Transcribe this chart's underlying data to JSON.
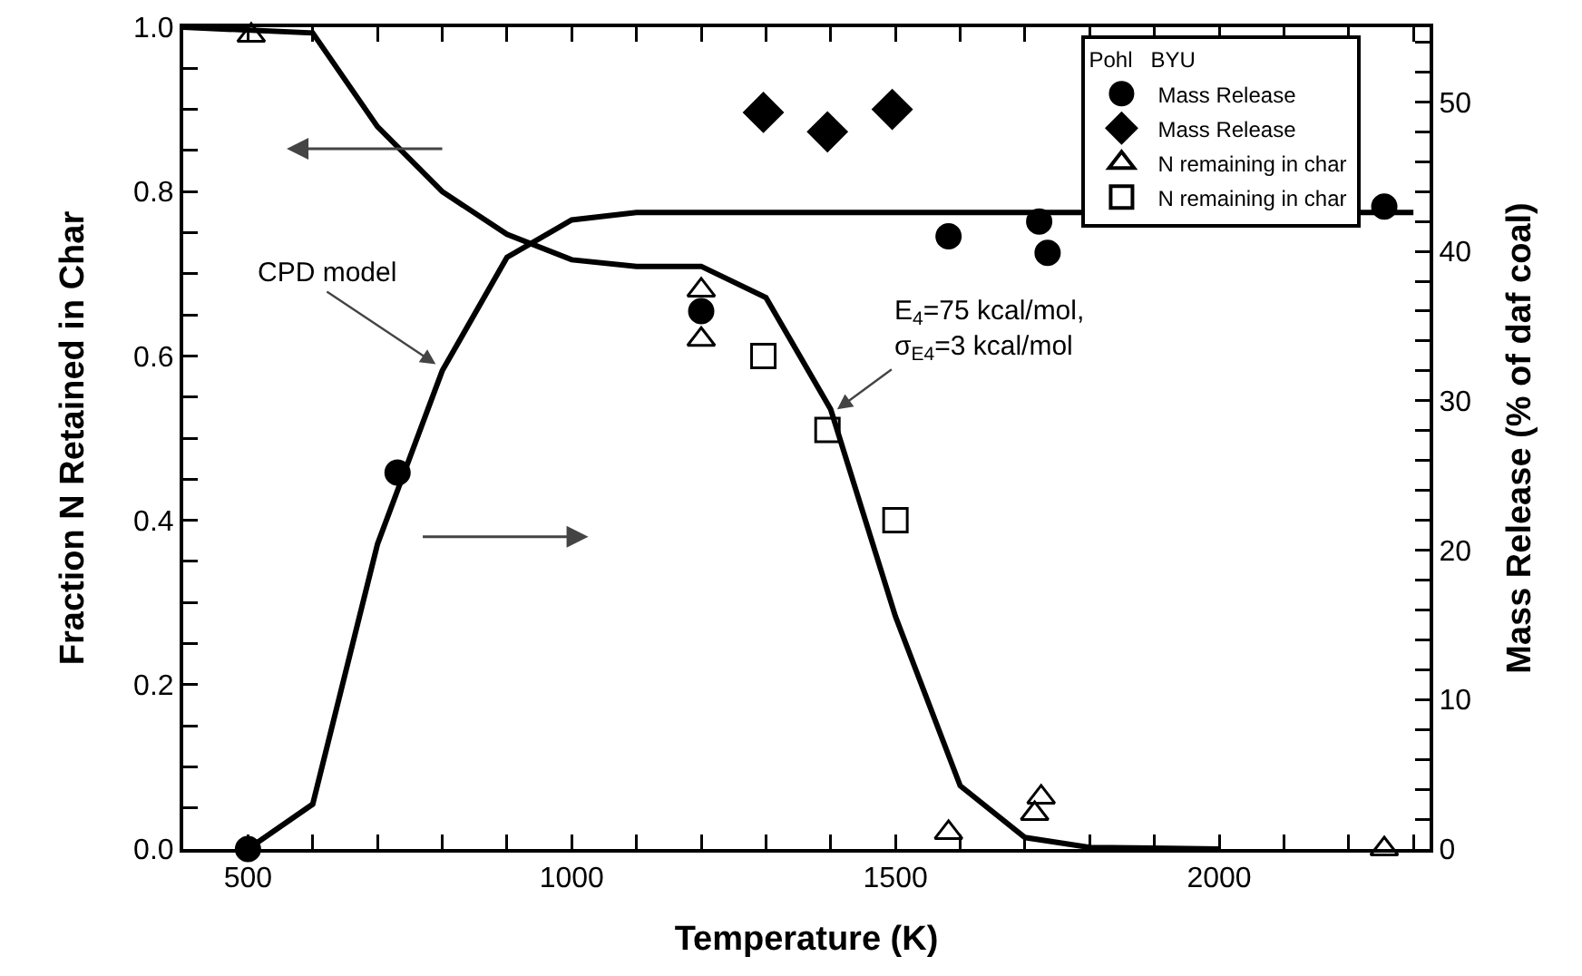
{
  "chart_data": {
    "type": "line",
    "xlabel": "Temperature (K)",
    "ylabel": "Fraction N Retained in Char",
    "y2label": "Mass Release (% of daf coal)",
    "legend_title": "Pohl   BYU",
    "xlim": [
      400,
      2325
    ],
    "xticks": [
      {
        "value": 400,
        "label": null
      },
      500,
      {
        "value": 600,
        "label": null
      },
      {
        "value": 700,
        "label": null
      },
      {
        "value": 800,
        "label": null
      },
      {
        "value": 900,
        "label": null
      },
      1000,
      {
        "value": 1100,
        "label": null
      },
      {
        "value": 1200,
        "label": null
      },
      {
        "value": 1300,
        "label": null
      },
      {
        "value": 1400,
        "label": null
      },
      1500,
      {
        "value": 1600,
        "label": null
      },
      {
        "value": 1700,
        "label": null
      },
      {
        "value": 1800,
        "label": null
      },
      {
        "value": 1900,
        "label": null
      },
      2000,
      {
        "value": 2100,
        "label": null
      },
      {
        "value": 2200,
        "label": null
      },
      {
        "value": 2300,
        "label": null
      }
    ],
    "ylim": [
      0,
      1
    ],
    "yticks": [
      {
        "value": 0,
        "label": "0.0"
      },
      {
        "value": 0.05,
        "label": null
      },
      {
        "value": 0.1,
        "label": null
      },
      {
        "value": 0.15,
        "label": null
      },
      0.2,
      {
        "value": 0.25,
        "label": null
      },
      {
        "value": 0.3,
        "label": null
      },
      {
        "value": 0.35,
        "label": null
      },
      0.4,
      {
        "value": 0.45,
        "label": null
      },
      {
        "value": 0.5,
        "label": null
      },
      {
        "value": 0.55,
        "label": null
      },
      0.6,
      {
        "value": 0.65,
        "label": null
      },
      {
        "value": 0.7,
        "label": null
      },
      {
        "value": 0.75,
        "label": null
      },
      0.8,
      {
        "value": 0.85,
        "label": null
      },
      {
        "value": 0.9,
        "label": null
      },
      {
        "value": 0.95,
        "label": null
      },
      {
        "value": 1,
        "label": "1.0"
      }
    ],
    "y2lim": [
      0,
      55
    ],
    "y2ticks": [
      0,
      {
        "value": 2,
        "label": null
      },
      {
        "value": 4,
        "label": null
      },
      {
        "value": 6,
        "label": null
      },
      {
        "value": 8,
        "label": null
      },
      10,
      {
        "value": 12,
        "label": null
      },
      {
        "value": 14,
        "label": null
      },
      {
        "value": 16,
        "label": null
      },
      {
        "value": 18,
        "label": null
      },
      20,
      {
        "value": 22,
        "label": null
      },
      {
        "value": 24,
        "label": null
      },
      {
        "value": 26,
        "label": null
      },
      {
        "value": 28,
        "label": null
      },
      30,
      {
        "value": 32,
        "label": null
      },
      {
        "value": 34,
        "label": null
      },
      {
        "value": 36,
        "label": null
      },
      {
        "value": 38,
        "label": null
      },
      40,
      {
        "value": 42,
        "label": null
      },
      {
        "value": 44,
        "label": null
      },
      {
        "value": 46,
        "label": null
      },
      {
        "value": 48,
        "label": null
      },
      50,
      {
        "value": 52,
        "label": null
      },
      {
        "value": 54,
        "label": null
      }
    ],
    "grid": false,
    "legend": "top right",
    "series": [
      {
        "color": "#000000",
        "x": [
          400,
          600,
          700,
          800,
          900,
          1000,
          1100,
          1200,
          1300,
          1400,
          1500,
          1600,
          1700,
          1800,
          2000
        ],
        "values": [
          1.0,
          0.993,
          0.879,
          0.8,
          0.748,
          0.717,
          0.709,
          0.709,
          0.671,
          0.535,
          0.283,
          0.077,
          0.014,
          0.002,
          0.0
        ]
      },
      {
        "axis": "y2",
        "color": "#000000",
        "x": [
          500,
          600,
          700,
          800,
          900,
          1000,
          1100,
          2300
        ],
        "values": [
          0,
          3.0,
          20.4,
          32.0,
          39.6,
          42.1,
          42.6,
          42.6
        ]
      },
      {
        "type": "scatter",
        "name": "Mass Release",
        "axis": "y2",
        "marker": "circle",
        "color": "#000000",
        "x": [
          500,
          731,
          1200,
          1582,
          1722,
          1735,
          2255
        ],
        "values": [
          0,
          25.2,
          36.0,
          41.0,
          42.0,
          39.9,
          43.0
        ]
      },
      {
        "type": "scatter",
        "name": "Mass Release",
        "axis": "y2",
        "marker": "diamond",
        "color": "#000000",
        "x": [
          1296,
          1395,
          1495
        ],
        "values": [
          49.3,
          48.0,
          49.5
        ]
      },
      {
        "type": "scatter",
        "name": "N remaining in char",
        "marker": "triangle",
        "color": "#000000",
        "x": [
          505,
          1200,
          1200,
          1582,
          1715,
          1725,
          2255
        ],
        "values": [
          0.99,
          0.68,
          0.62,
          0.02,
          0.043,
          0.063,
          0.0
        ]
      },
      {
        "type": "scatter",
        "name": "N remaining in char",
        "marker": "square",
        "color": "#000000",
        "x": [
          1296,
          1395,
          1500
        ],
        "values": [
          0.6,
          0.51,
          0.4
        ]
      }
    ],
    "annotations": [
      {
        "text": "CPD model",
        "x": 790,
        "y": 0.59
      },
      {
        "text": "E$_{4}$=75 kcal/mol,\nσ$_{E4}$=3 kcal/mol",
        "x": 1410,
        "y": 0.535
      }
    ]
  }
}
